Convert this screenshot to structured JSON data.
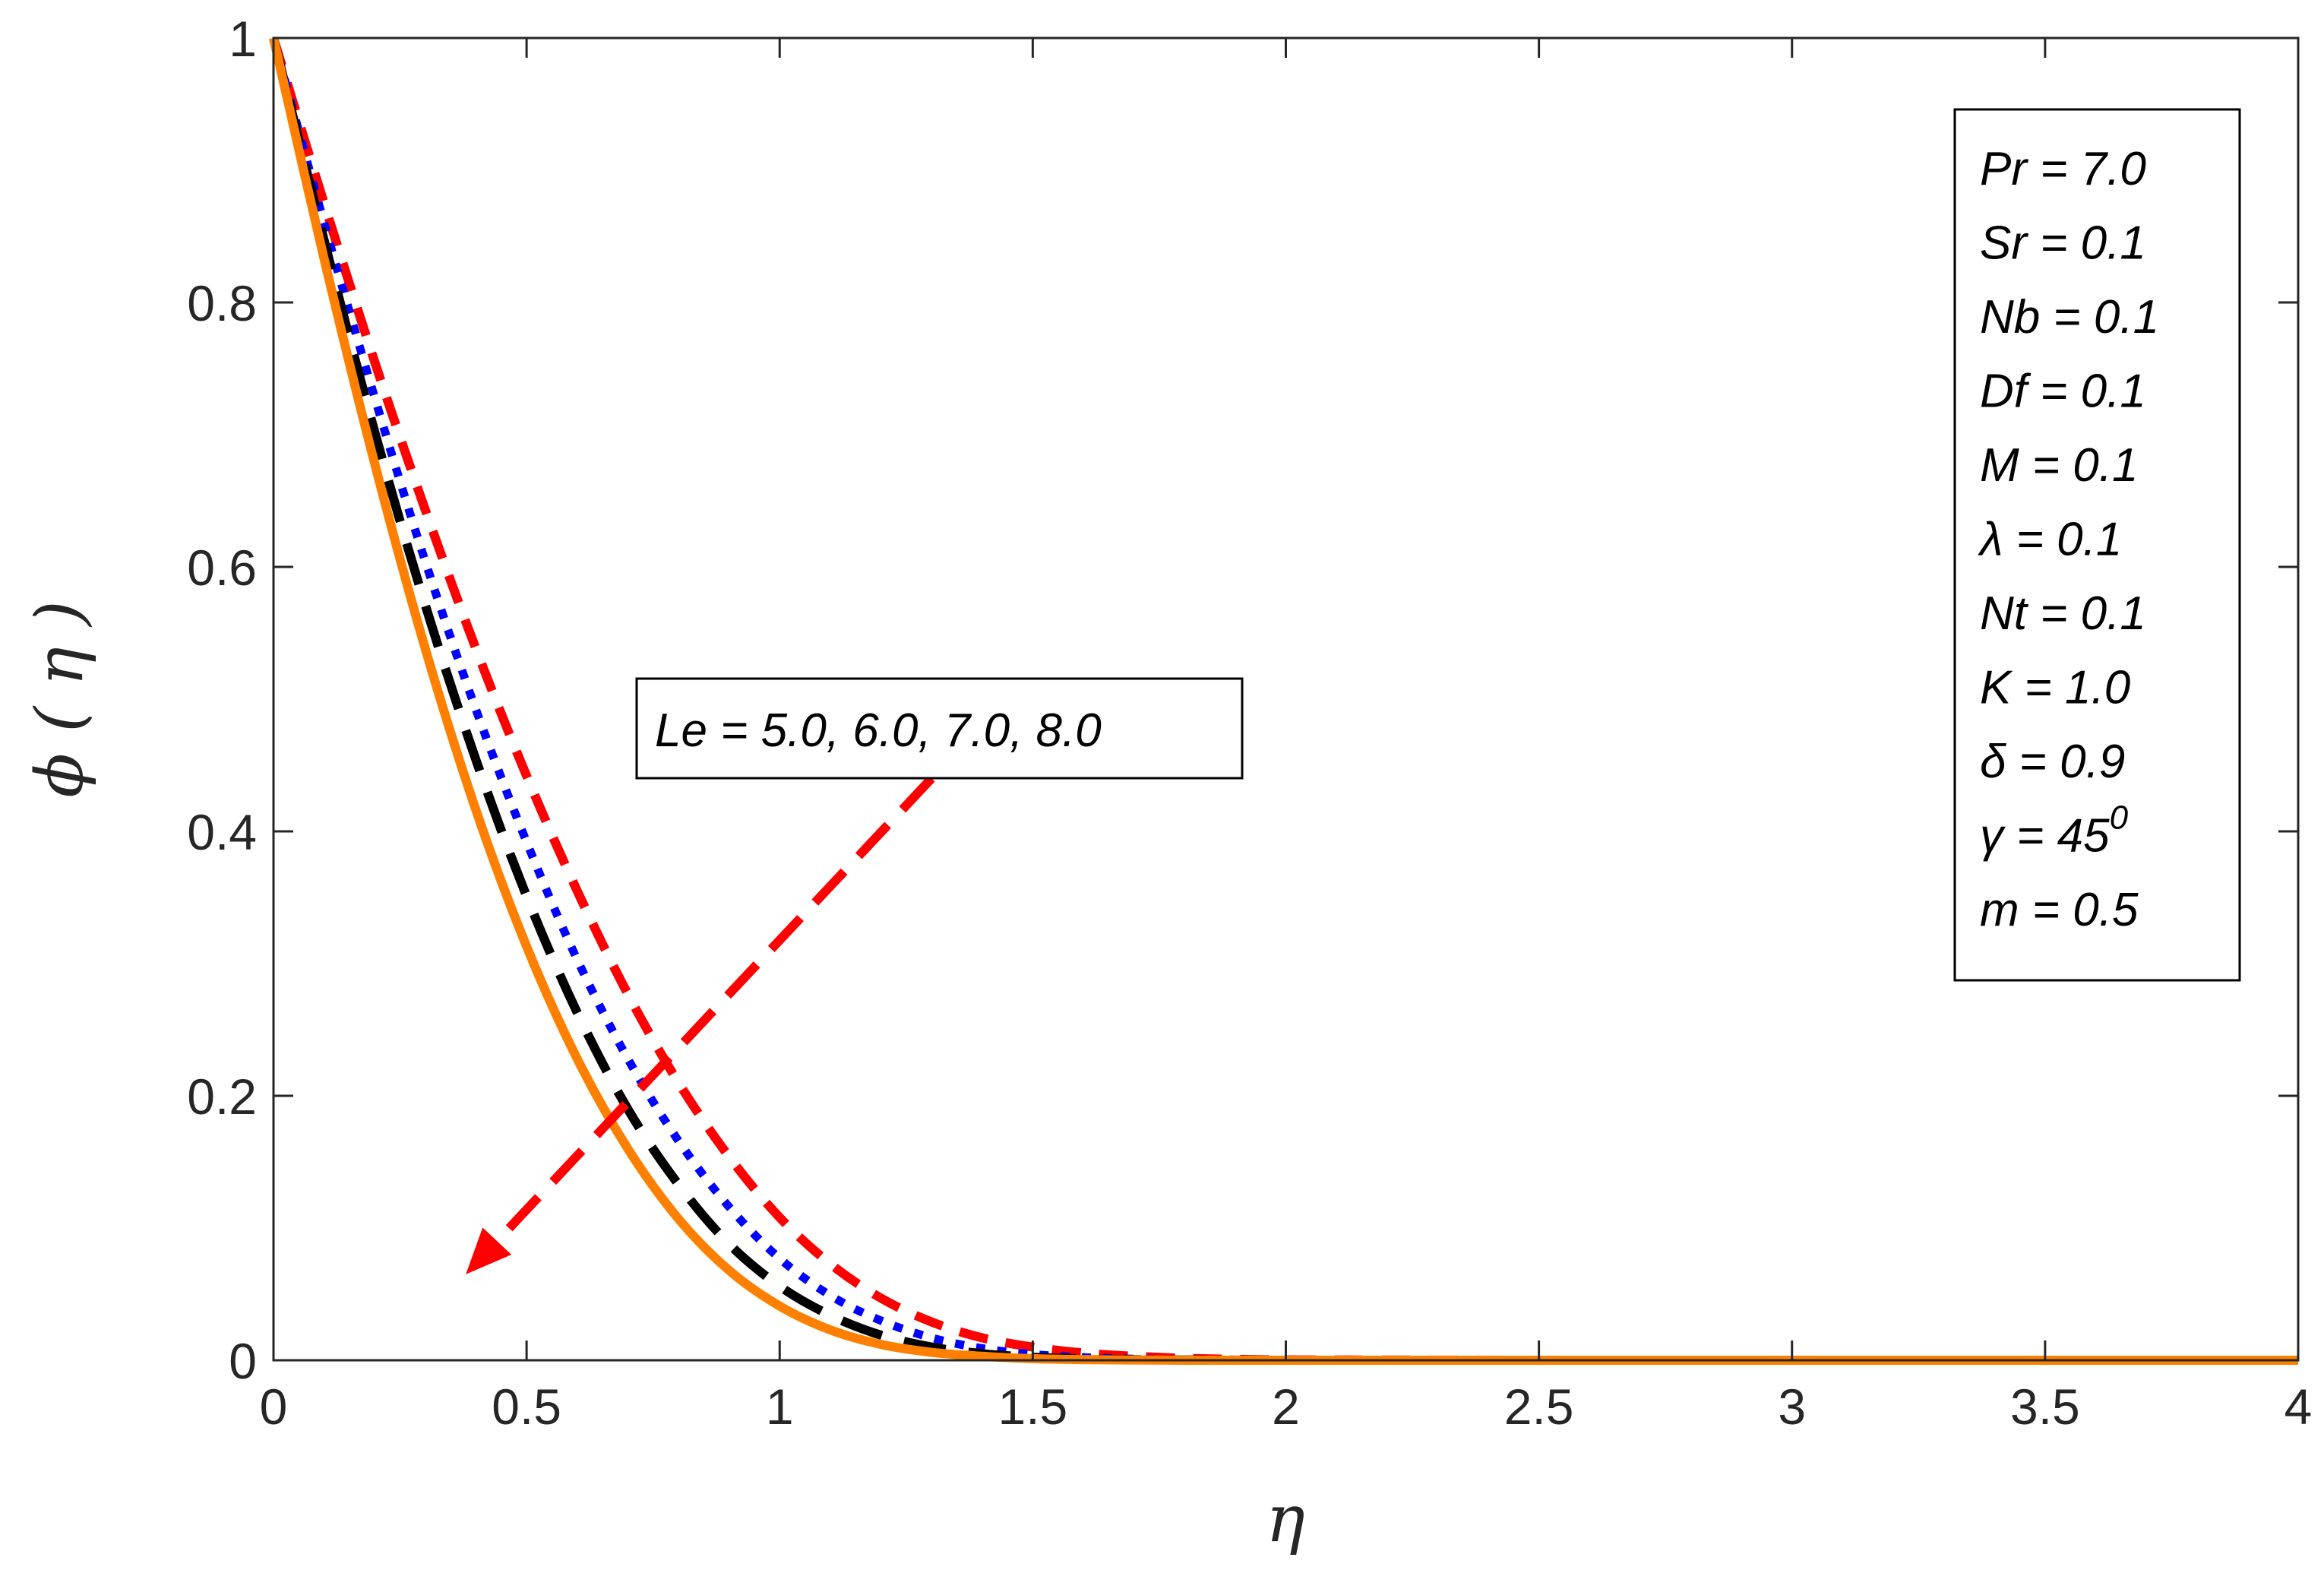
{
  "chart_data": {
    "type": "line",
    "title": "",
    "xlabel": "η",
    "ylabel": "ϕ ( η )",
    "xlim": [
      0,
      4
    ],
    "ylim": [
      0,
      1
    ],
    "xticks": [
      0,
      0.5,
      1,
      1.5,
      2,
      2.5,
      3,
      3.5,
      4
    ],
    "xtick_labels": [
      "0",
      "0.5",
      "1",
      "1.5",
      "2",
      "2.5",
      "3",
      "3.5",
      "4"
    ],
    "yticks": [
      0,
      0.2,
      0.4,
      0.6,
      0.8,
      1
    ],
    "ytick_labels": [
      "0",
      "0.2",
      "0.4",
      "0.6",
      "0.8",
      "1"
    ],
    "grid": false,
    "x": [
      0,
      0.1,
      0.2,
      0.3,
      0.4,
      0.5,
      0.6,
      0.7,
      0.8,
      0.9,
      1.0,
      1.1,
      1.2,
      1.3,
      1.4,
      1.5,
      1.6,
      1.7,
      1.8,
      1.9,
      2.0,
      2.5,
      3.0,
      3.5,
      4.0
    ],
    "series": [
      {
        "name": "Le = 5.0",
        "color": "#ff0000",
        "style": "dashed",
        "values": [
          1.0,
          0.875,
          0.755,
          0.643,
          0.538,
          0.442,
          0.355,
          0.277,
          0.21,
          0.154,
          0.108,
          0.073,
          0.047,
          0.029,
          0.017,
          0.01,
          0.0055,
          0.003,
          0.0015,
          0.0007,
          0.0003,
          0,
          0,
          0,
          0
        ]
      },
      {
        "name": "Le = 6.0",
        "color": "#0000ff",
        "style": "dotted",
        "values": [
          1.0,
          0.86,
          0.728,
          0.604,
          0.492,
          0.392,
          0.303,
          0.228,
          0.166,
          0.116,
          0.077,
          0.049,
          0.03,
          0.017,
          0.009,
          0.0045,
          0.0022,
          0.001,
          0.0004,
          0.0002,
          0.0001,
          0,
          0,
          0,
          0
        ]
      },
      {
        "name": "Le = 7.0",
        "color": "#000000",
        "style": "long-dashed",
        "values": [
          1.0,
          0.847,
          0.702,
          0.571,
          0.454,
          0.351,
          0.263,
          0.19,
          0.133,
          0.088,
          0.056,
          0.034,
          0.019,
          0.01,
          0.005,
          0.0023,
          0.001,
          0.0004,
          0.0002,
          0.0001,
          0,
          0,
          0,
          0,
          0
        ]
      },
      {
        "name": "Le = 8.0",
        "color": "#ff8000",
        "style": "solid",
        "values": [
          1.0,
          0.833,
          0.678,
          0.538,
          0.416,
          0.313,
          0.228,
          0.16,
          0.107,
          0.068,
          0.041,
          0.023,
          0.012,
          0.006,
          0.003,
          0.0012,
          0.0005,
          0.0002,
          0.0001,
          0,
          0,
          0,
          0,
          0,
          0
        ]
      }
    ],
    "annotation": {
      "text": "Le = 5.0, 6.0, 7.0, 8.0",
      "arrow_color": "#ff0000",
      "arrow_from": [
        1.3,
        0.44
      ],
      "arrow_to": [
        0.38,
        0.065
      ]
    },
    "parameters": [
      "Pr = 7.0",
      "Sr = 0.1",
      "Nb = 0.1",
      "Df = 0.1",
      "M = 0.1",
      "λ = 0.1",
      "Nt = 0.1",
      "K = 1.0",
      "δ = 0.9",
      "γ = 45",
      "m = 0.5"
    ],
    "gamma_superscript": "0"
  }
}
